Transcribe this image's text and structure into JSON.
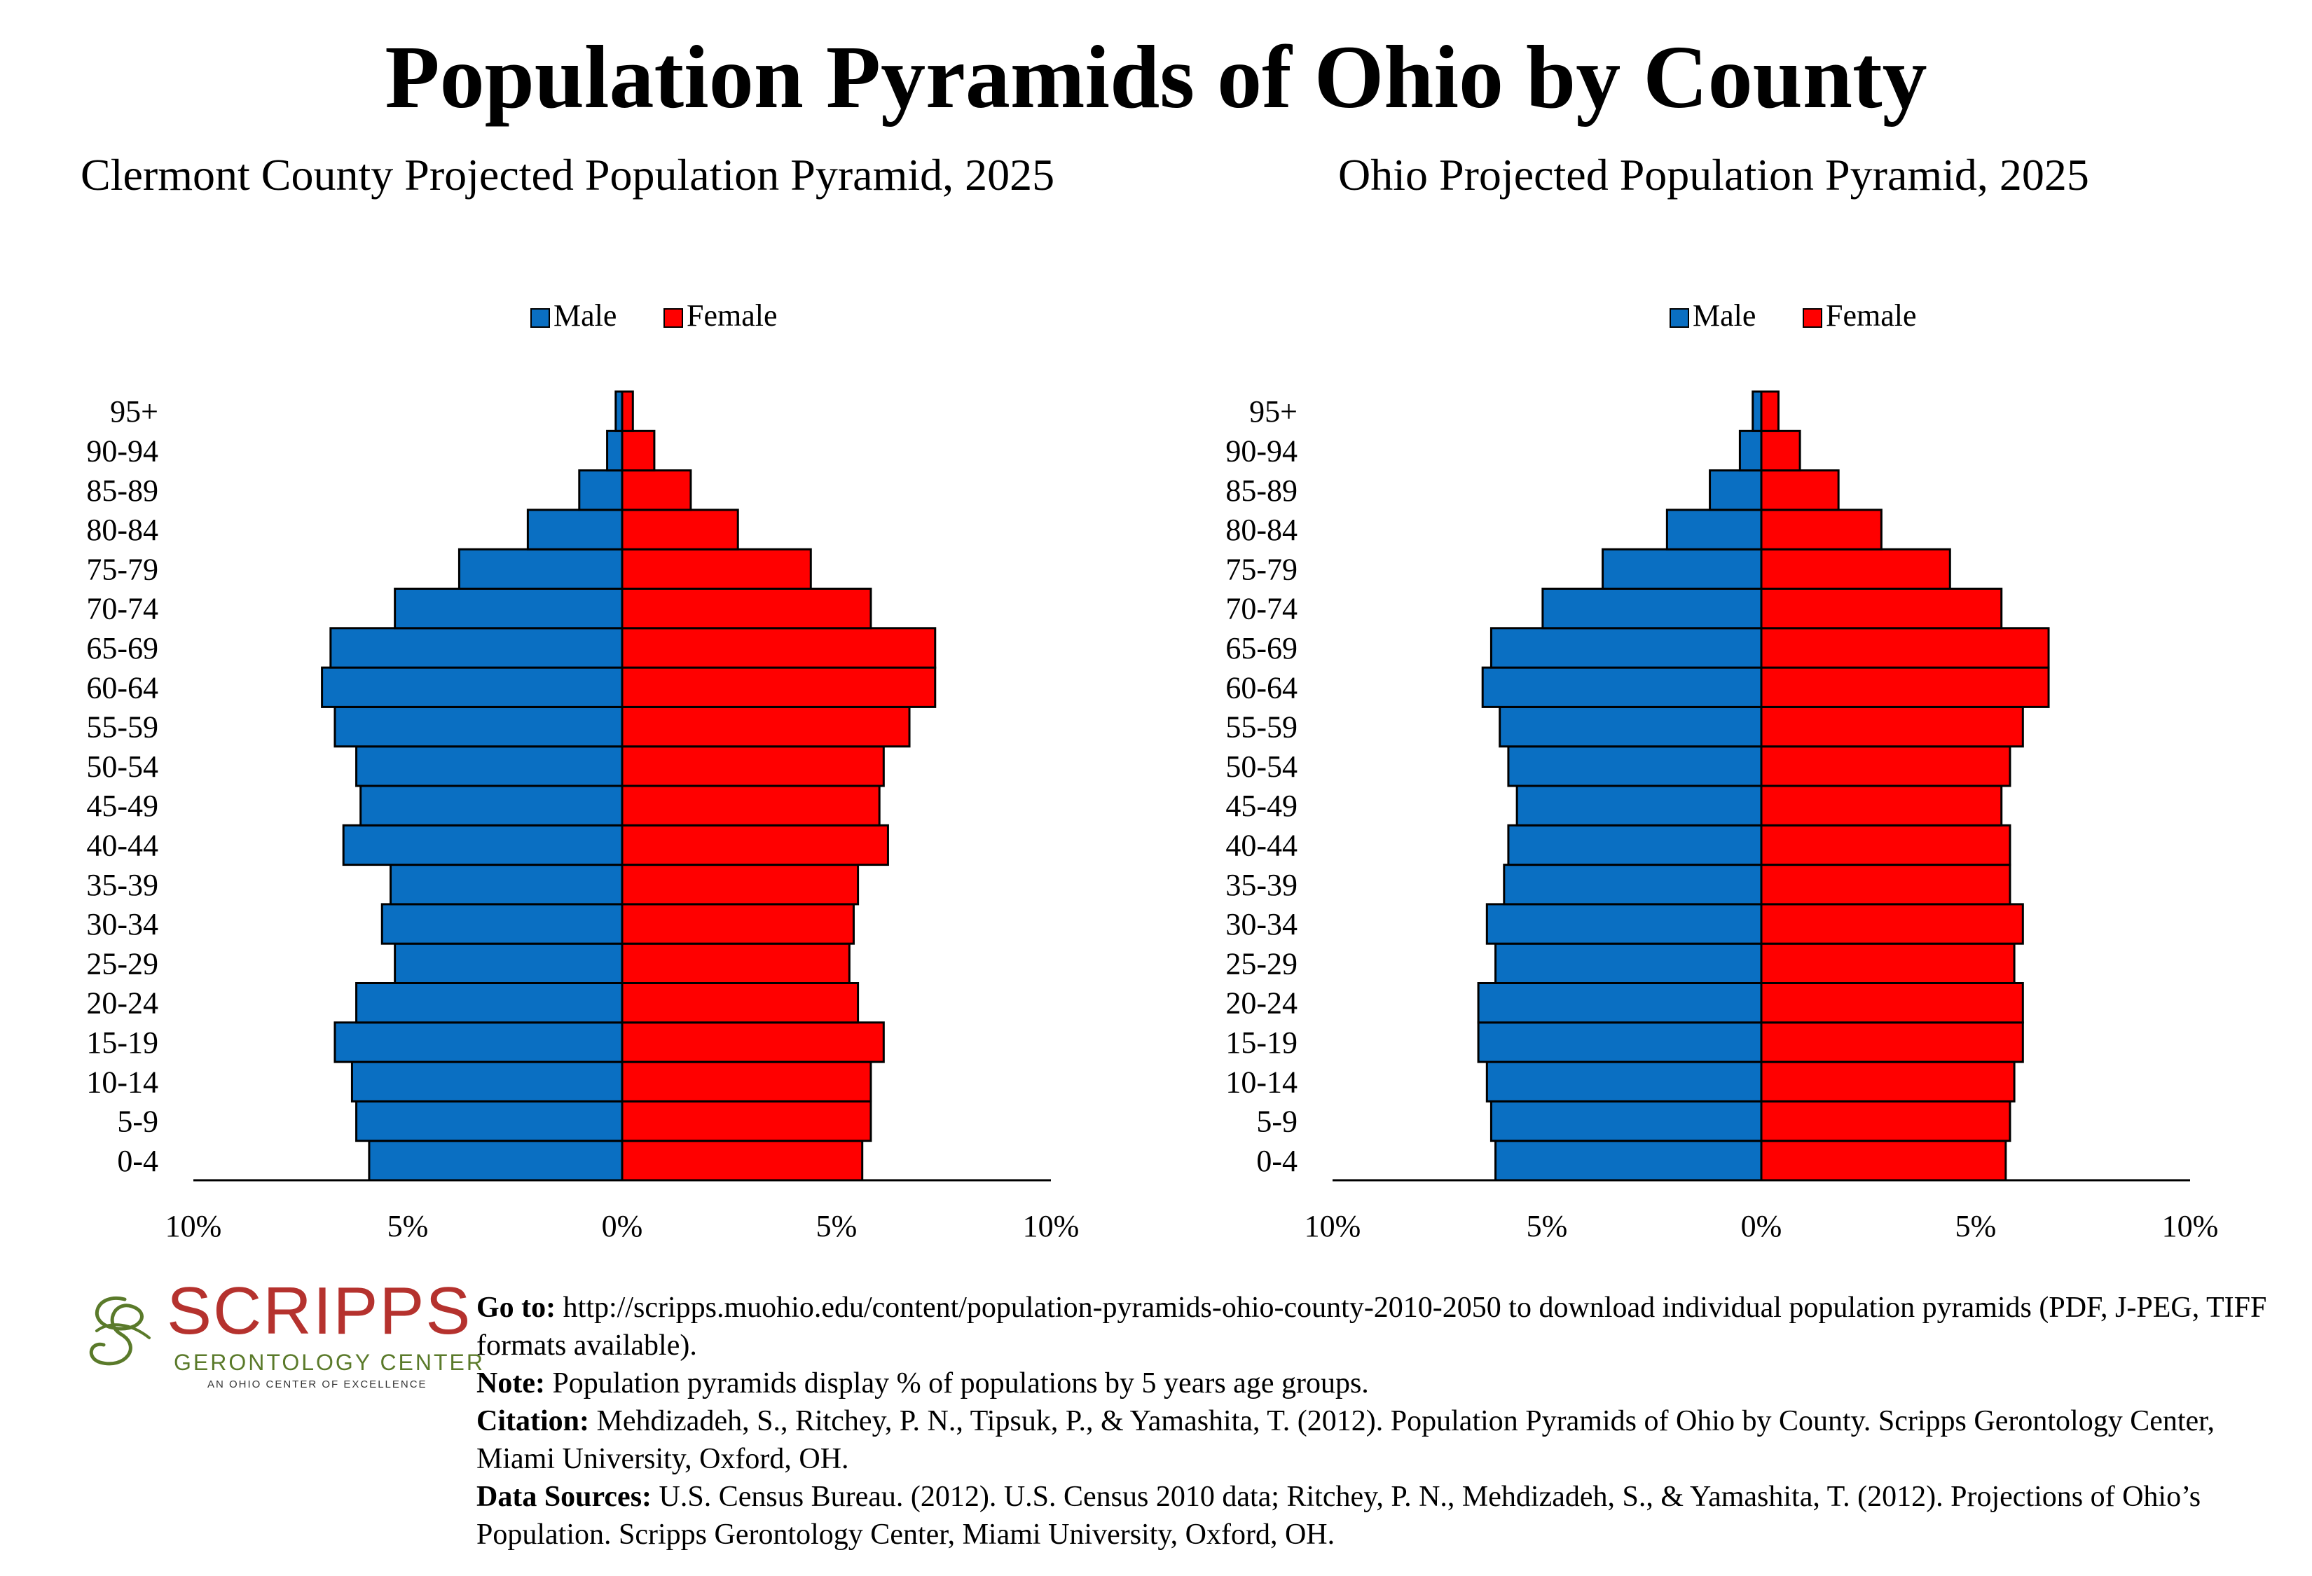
{
  "main_title": "Population Pyramids of Ohio by County",
  "colors": {
    "male": "#0a6fc2",
    "female": "#ff0000"
  },
  "chart_data": [
    {
      "type": "bar",
      "title": "Clermont County Projected Population Pyramid, 2025",
      "legend": [
        "Male",
        "Female"
      ],
      "legend_position": "top-center",
      "categories": [
        "0-4",
        "5-9",
        "10-14",
        "15-19",
        "20-24",
        "25-29",
        "30-34",
        "35-39",
        "40-44",
        "45-49",
        "50-54",
        "55-59",
        "60-64",
        "65-69",
        "70-74",
        "75-79",
        "80-84",
        "85-89",
        "90-94",
        "95+"
      ],
      "series": [
        {
          "name": "Male",
          "values": [
            5.9,
            6.2,
            6.3,
            6.7,
            6.2,
            5.3,
            5.6,
            5.4,
            6.5,
            6.1,
            6.2,
            6.7,
            7.0,
            6.8,
            5.3,
            3.8,
            2.2,
            1.0,
            0.35,
            0.15
          ]
        },
        {
          "name": "Female",
          "values": [
            5.6,
            5.8,
            5.8,
            6.1,
            5.5,
            5.3,
            5.4,
            5.5,
            6.2,
            6.0,
            6.1,
            6.7,
            7.3,
            7.3,
            5.8,
            4.4,
            2.7,
            1.6,
            0.75,
            0.25
          ]
        }
      ],
      "xticks": [
        "10%",
        "5%",
        "0%",
        "5%",
        "10%"
      ],
      "xlim": [
        -10,
        10
      ],
      "ylabel": "",
      "xlabel": ""
    },
    {
      "type": "bar",
      "title": "Ohio Projected Population Pyramid, 2025",
      "legend": [
        "Male",
        "Female"
      ],
      "legend_position": "top-center",
      "categories": [
        "0-4",
        "5-9",
        "10-14",
        "15-19",
        "20-24",
        "25-29",
        "30-34",
        "35-39",
        "40-44",
        "45-49",
        "50-54",
        "55-59",
        "60-64",
        "65-69",
        "70-74",
        "75-79",
        "80-84",
        "85-89",
        "90-94",
        "95+"
      ],
      "series": [
        {
          "name": "Male",
          "values": [
            6.2,
            6.3,
            6.4,
            6.6,
            6.6,
            6.2,
            6.4,
            6.0,
            5.9,
            5.7,
            5.9,
            6.1,
            6.5,
            6.3,
            5.1,
            3.7,
            2.2,
            1.2,
            0.5,
            0.2
          ]
        },
        {
          "name": "Female",
          "values": [
            5.7,
            5.8,
            5.9,
            6.1,
            6.1,
            5.9,
            6.1,
            5.8,
            5.8,
            5.6,
            5.8,
            6.1,
            6.7,
            6.7,
            5.6,
            4.4,
            2.8,
            1.8,
            0.9,
            0.4
          ]
        }
      ],
      "xticks": [
        "10%",
        "5%",
        "0%",
        "5%",
        "10%"
      ],
      "xlim": [
        -10,
        10
      ],
      "ylabel": "",
      "xlabel": ""
    }
  ],
  "logo": {
    "word": "SCRIPPS",
    "sub": "GERONTOLOGY CENTER",
    "tagline": "AN OHIO CENTER OF EXCELLENCE"
  },
  "footer": {
    "goto_label": "Go to:",
    "goto_text": "http://scripps.muohio.edu/content/population-pyramids-ohio-county-2010-2050 to download individual population pyramids (PDF, J-PEG, TIFF formats available).",
    "note_label": "Note:",
    "note_text": "Population pyramids display % of populations by 5 years age groups.",
    "citation_label": "Citation:",
    "citation_text": "Mehdizadeh, S., Ritchey, P. N., Tipsuk, P., & Yamashita, T. (2012). Population Pyramids of Ohio by County. Scripps Gerontology Center, Miami University, Oxford, OH.",
    "sources_label": "Data Sources:",
    "sources_text": "U.S. Census Bureau. (2012). U.S. Census 2010 data; Ritchey, P. N., Mehdizadeh, S., & Yamashita, T. (2012). Projections of Ohio’s Population. Scripps Gerontology Center, Miami University, Oxford, OH."
  }
}
